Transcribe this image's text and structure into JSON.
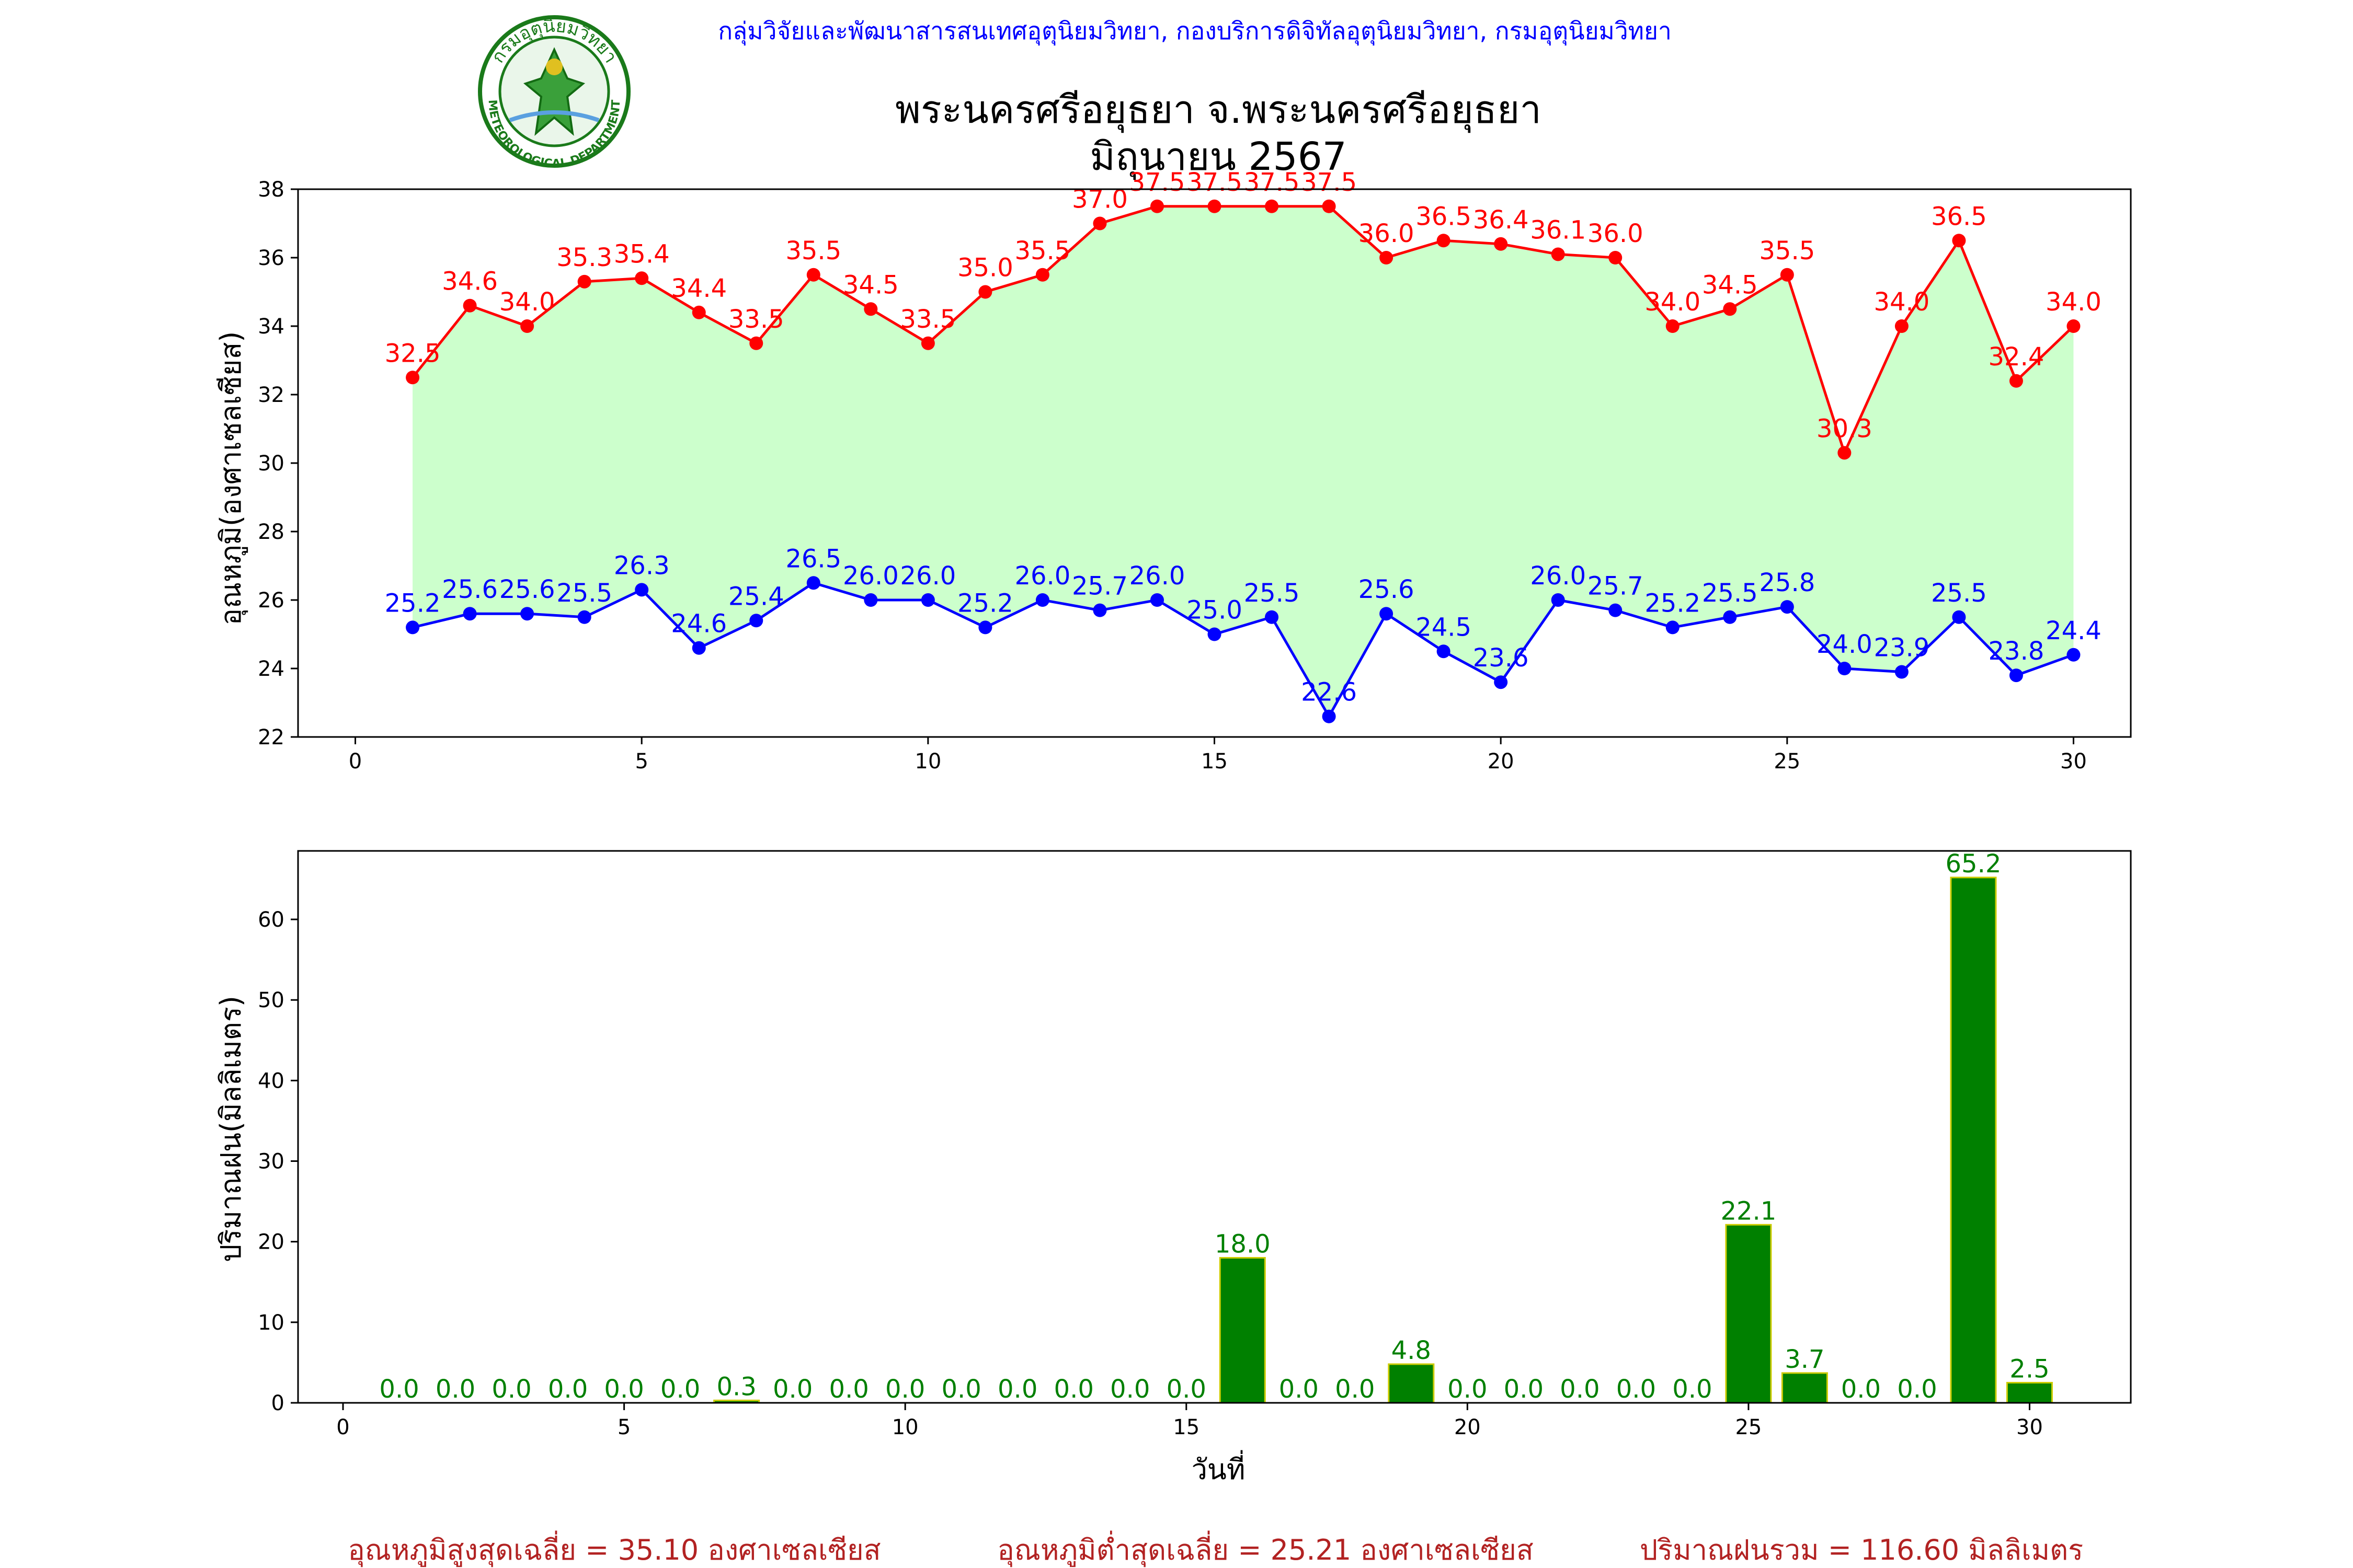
{
  "header": {
    "agency": "กลุ่มวิจัยและพัฒนาสารสนเทศอุตุนิยมวิทยา, กองบริการดิจิทัลอุตุนิยมวิทยา, กรมอุตุนิยมวิทยา",
    "logo_top_text": "กรมอุตุนิยมวิทยา",
    "logo_bottom_text": "METEOROLOGICAL DEPARTMENT",
    "title_line1": "พระนครศรีอยุธยา จ.พระนครศรีอยุธยา",
    "title_line2": "มิถุนายน 2567"
  },
  "colors": {
    "max_line": "#ff0000",
    "min_line": "#0000ff",
    "fill": "#ccffcc",
    "bar": "#008000",
    "bar_edge": "#cccc00",
    "bar_label": "#008000",
    "summary": "#b22222",
    "agency_text": "#0000ff"
  },
  "chart_data": [
    {
      "type": "line",
      "ylabel": "อุณหภูมิ(องศาเซลเซียส)",
      "xlabel": "",
      "xlim": [
        -1,
        31
      ],
      "ylim": [
        22,
        38
      ],
      "xticks": [
        0,
        5,
        10,
        15,
        20,
        25,
        30
      ],
      "yticks": [
        22,
        24,
        26,
        28,
        30,
        32,
        34,
        36,
        38
      ],
      "x": [
        1,
        2,
        3,
        4,
        5,
        6,
        7,
        8,
        9,
        10,
        11,
        12,
        13,
        14,
        15,
        16,
        17,
        18,
        19,
        20,
        21,
        22,
        23,
        24,
        25,
        26,
        27,
        28,
        29,
        30
      ],
      "series": [
        {
          "key": "max",
          "values": [
            32.5,
            34.6,
            34.0,
            35.3,
            35.4,
            34.4,
            33.5,
            35.5,
            34.5,
            33.5,
            35.0,
            35.5,
            37.0,
            37.5,
            37.5,
            37.5,
            37.5,
            36.0,
            36.5,
            36.4,
            36.1,
            36.0,
            34.0,
            34.5,
            35.5,
            30.3,
            34.0,
            36.5,
            32.4,
            34.0
          ],
          "labels": [
            "32.5",
            "34.6",
            "34.0",
            "35.3",
            "35.4",
            "34.4",
            "33.5",
            "35.5",
            "34.5",
            "33.5",
            "35.0",
            "35.5",
            "37.0",
            "37.5",
            "37.5",
            "37.5",
            "37.5",
            "36.0",
            "36.5",
            "36.4",
            "36.1",
            "36.0",
            "34.0",
            "34.5",
            "35.5",
            "30.3",
            "34.0",
            "36.5",
            "32.4",
            "34.0"
          ]
        },
        {
          "key": "min",
          "values": [
            25.2,
            25.6,
            25.6,
            25.5,
            26.3,
            24.6,
            25.4,
            26.5,
            26.0,
            26.0,
            25.2,
            26.0,
            25.7,
            26.0,
            25.0,
            25.5,
            22.6,
            25.6,
            24.5,
            23.6,
            26.0,
            25.7,
            25.2,
            25.5,
            25.8,
            24.0,
            23.9,
            25.5,
            23.8,
            24.4
          ],
          "labels": [
            "25.2",
            "25.6",
            "25.6",
            "25.5",
            "26.3",
            "24.6",
            "25.4",
            "26.5",
            "26.0",
            "26.0",
            "25.2",
            "26.0",
            "25.7",
            "26.0",
            "25.0",
            "25.5",
            "22.6",
            "25.6",
            "24.5",
            "23.6",
            "26.0",
            "25.7",
            "25.2",
            "25.5",
            "25.8",
            "24.0",
            "23.9",
            "25.5",
            "23.8",
            "24.4"
          ]
        }
      ]
    },
    {
      "type": "bar",
      "ylabel": "ปริมาณฝน(มิลลิเมตร)",
      "xlabel": "วันที่",
      "xlim": [
        -0.8,
        31.8
      ],
      "ylim": [
        0,
        68.5
      ],
      "xticks": [
        0,
        5,
        10,
        15,
        20,
        25,
        30
      ],
      "yticks": [
        0,
        10,
        20,
        30,
        40,
        50,
        60
      ],
      "x": [
        1,
        2,
        3,
        4,
        5,
        6,
        7,
        8,
        9,
        10,
        11,
        12,
        13,
        14,
        15,
        16,
        17,
        18,
        19,
        20,
        21,
        22,
        23,
        24,
        25,
        26,
        27,
        28,
        29,
        30
      ],
      "values": [
        0,
        0,
        0,
        0,
        0,
        0,
        0.3,
        0,
        0,
        0,
        0,
        0,
        0,
        0,
        0,
        18.0,
        0,
        0,
        4.8,
        0,
        0,
        0,
        0,
        0,
        22.1,
        3.7,
        0,
        0,
        65.2,
        2.5
      ],
      "labels": [
        "0.0",
        "0.0",
        "0.0",
        "0.0",
        "0.0",
        "0.0",
        "0.3",
        "0.0",
        "0.0",
        "0.0",
        "0.0",
        "0.0",
        "0.0",
        "0.0",
        "0.0",
        "18.0",
        "0.0",
        "0.0",
        "4.8",
        "0.0",
        "0.0",
        "0.0",
        "0.0",
        "0.0",
        "22.1",
        "3.7",
        "0.0",
        "0.0",
        "65.2",
        "2.5"
      ]
    }
  ],
  "summary": {
    "avg_max": "อุณหภูมิสูงสุดเฉลี่ย = 35.10 องศาเซลเซียส",
    "avg_min": "อุณหภูมิต่ำสุดเฉลี่ย = 25.21 องศาเซลเซียส",
    "total_rain": "ปริมาณฝนรวม = 116.60 มิลลิเมตร"
  }
}
